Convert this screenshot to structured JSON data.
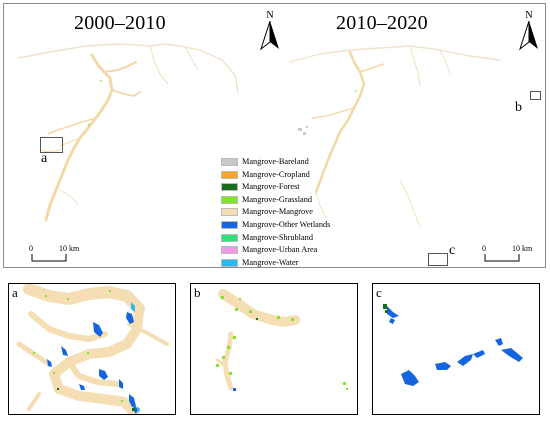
{
  "maps": {
    "left_title": "2000–2010",
    "right_title": "2010–2020",
    "north_label": "N",
    "scale": {
      "start": "0",
      "end": "10 km"
    }
  },
  "inset_markers": {
    "a": "a",
    "b": "b",
    "c": "c"
  },
  "legend": [
    {
      "label": "Mangrove-Bareland",
      "color": "#c8c8c8"
    },
    {
      "label": "Mangrove-Cropland",
      "color": "#f5a623"
    },
    {
      "label": "Mangrove-Forest",
      "color": "#1a6b1a"
    },
    {
      "label": "Mangrove-Grassland",
      "color": "#7ee62a"
    },
    {
      "label": "Mangrove-Mangrove",
      "color": "#f5deb3"
    },
    {
      "label": "Mangrove-Other Wetlands",
      "color": "#1565e0"
    },
    {
      "label": "Mangrove-Shrubland",
      "color": "#2ee07a"
    },
    {
      "label": "Mangrove-Urban Area",
      "color": "#f29ae8"
    },
    {
      "label": "Mangrove-Water",
      "color": "#2bb8f0"
    }
  ],
  "panels": {
    "a": "a",
    "b": "b",
    "c": "c"
  }
}
